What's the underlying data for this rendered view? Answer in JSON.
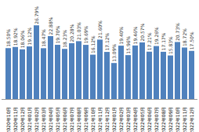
{
  "chart_data": {
    "type": "bar",
    "categories": [
      "2020年10月",
      "2020年11月",
      "2020年12月",
      "2021年01月",
      "2021年02月",
      "2021年03月",
      "2021年04月",
      "2021年05月",
      "2021年06月",
      "2021年07月",
      "2021年08月",
      "2021年09月",
      "2021年10月",
      "2021年11月",
      "2021年12月",
      "2022年01月",
      "2022年02月",
      "2022年03月",
      "2022年04月",
      "2022年05月",
      "2022年06月",
      "2022年07月",
      "2022年08月",
      "2022年09月",
      "2022年10月",
      "2022年11月",
      "2022年12月"
    ],
    "values": [
      18.5,
      18.92,
      18.06,
      19.12,
      26.79,
      18.47,
      22.88,
      19.7,
      18.23,
      20.28,
      21.03,
      19.69,
      16.12,
      21.6,
      17.12,
      13.09,
      19.4,
      15.96,
      19.46,
      20.57,
      17.21,
      19.26,
      17.17,
      15.83,
      20.73,
      18.72,
      17.5
    ],
    "value_labels": [
      "18.50%",
      "18.92%",
      "18.06%",
      "19.12%",
      "26.79%",
      "18.47%",
      "22.88%",
      "19.70%",
      "18.23%",
      "20.28%",
      "21.03%",
      "19.69%",
      "16.12%",
      "21.60%",
      "17.12%",
      "13.09%",
      "19.40%",
      "15.96%",
      "19.46%",
      "20.57%",
      "17.21%",
      "19.26%",
      "17.17%",
      "15.83%",
      "20.73%",
      "18.72%",
      "17.50%"
    ],
    "color": "#4f81bd",
    "ylim": [
      0,
      28
    ],
    "grid": false,
    "data_labels": true,
    "tick_labels": "x"
  }
}
